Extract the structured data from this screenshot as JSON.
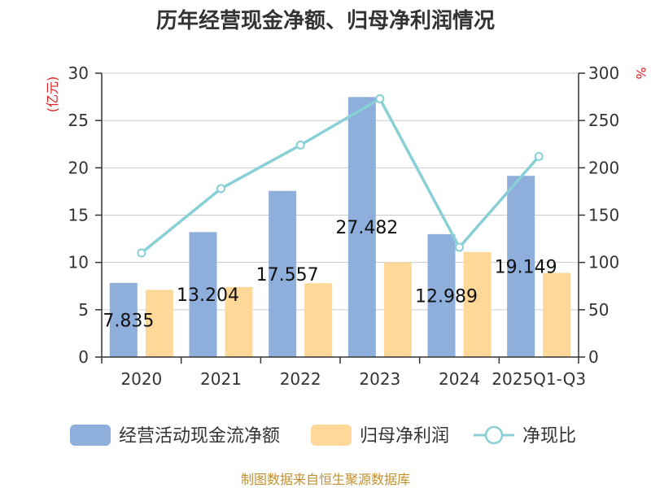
{
  "chart_data": {
    "type": "bar",
    "title": "历年经营现金净额、归母净利润情况",
    "categories": [
      "2020",
      "2021",
      "2022",
      "2023",
      "2024",
      "2025Q1-Q3"
    ],
    "series": [
      {
        "name": "经营活动现金流净额",
        "type": "bar",
        "axis": "left",
        "color": "#8eaedc",
        "values": [
          7.835,
          13.204,
          17.557,
          27.482,
          12.989,
          19.149
        ],
        "data_labels": [
          "7.835",
          "13.204",
          "17.557",
          "27.482",
          "12.989",
          "19.149"
        ]
      },
      {
        "name": "归母净利润",
        "type": "bar",
        "axis": "left",
        "color": "#fed898",
        "values": [
          7.1,
          7.4,
          7.8,
          10.0,
          11.1,
          8.9
        ]
      },
      {
        "name": "净现比",
        "type": "line",
        "axis": "right",
        "color": "#88d0d5",
        "values": [
          110,
          178,
          224,
          273,
          116,
          212
        ]
      }
    ],
    "y_left": {
      "unit": "(亿元)",
      "min": 0,
      "max": 30,
      "ticks": [
        0,
        5,
        10,
        15,
        20,
        25,
        30
      ]
    },
    "y_right": {
      "unit": "%",
      "min": 0,
      "max": 300,
      "ticks": [
        0,
        50,
        100,
        150,
        200,
        250,
        300
      ]
    },
    "grid": true,
    "legend_position": "bottom"
  },
  "source": "制图数据来自恒生聚源数据库"
}
